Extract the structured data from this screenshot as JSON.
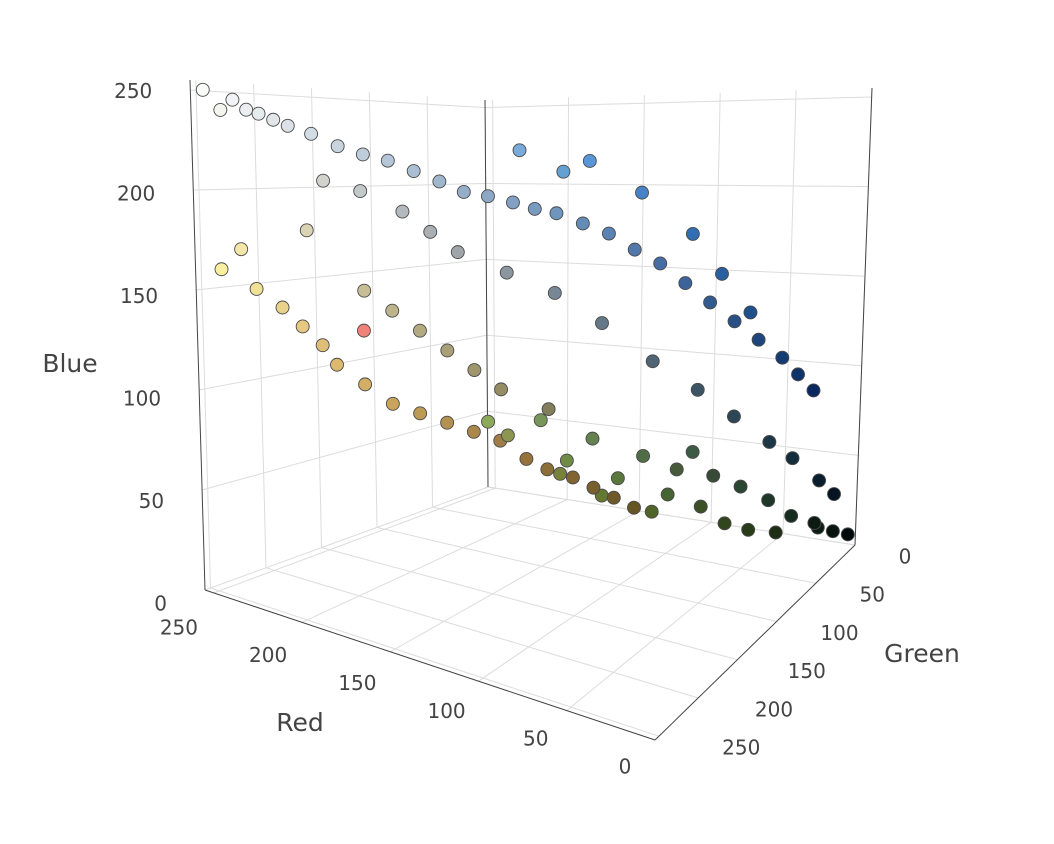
{
  "chart_data": {
    "type": "scatter3d",
    "xlabel": "Red",
    "ylabel": "Green",
    "zlabel": "Blue",
    "xlim": [
      0,
      255
    ],
    "ylim": [
      0,
      255
    ],
    "zlim": [
      0,
      255
    ],
    "xticks": [
      0,
      50,
      100,
      150,
      200,
      250
    ],
    "yticks": [
      0,
      50,
      100,
      150,
      200,
      250
    ],
    "zticks": [
      0,
      50,
      100,
      150,
      200,
      250
    ],
    "grid": true,
    "marker_color": "rgb",
    "marker_line_color": "#4a4a4a",
    "x": [
      250,
      245,
      240,
      235,
      230,
      225,
      220,
      210,
      200,
      190,
      180,
      170,
      160,
      150,
      140,
      130,
      120,
      110,
      100,
      90,
      80,
      70,
      60,
      50,
      40,
      30,
      20,
      15,
      10,
      180,
      160,
      140,
      120,
      100,
      80,
      60,
      45,
      30,
      20,
      10,
      5,
      100,
      120,
      90,
      70,
      50,
      40,
      30,
      210,
      195,
      170,
      60,
      40,
      30,
      20,
      10,
      5,
      0,
      15,
      80,
      100,
      120,
      90,
      70,
      60,
      50,
      40,
      30,
      100,
      80,
      140,
      110,
      70,
      55,
      250,
      245,
      240,
      235,
      230,
      225,
      220,
      210,
      200,
      190,
      180,
      170,
      160,
      150,
      140,
      130,
      120,
      110,
      100,
      160,
      180,
      200,
      220,
      240,
      150,
      130,
      170,
      190,
      140,
      120
    ],
    "y": [
      252,
      245,
      242,
      238,
      235,
      230,
      225,
      220,
      212,
      205,
      198,
      190,
      182,
      175,
      168,
      160,
      155,
      150,
      140,
      130,
      120,
      110,
      100,
      90,
      80,
      70,
      60,
      50,
      40,
      185,
      165,
      150,
      135,
      120,
      100,
      85,
      70,
      55,
      45,
      30,
      20,
      160,
      170,
      150,
      130,
      110,
      95,
      80,
      210,
      200,
      175,
      90,
      70,
      55,
      45,
      30,
      20,
      10,
      25,
      110,
      130,
      150,
      120,
      100,
      80,
      70,
      60,
      45,
      120,
      100,
      170,
      140,
      90,
      75,
      240,
      230,
      225,
      210,
      200,
      190,
      185,
      175,
      165,
      155,
      145,
      135,
      125,
      115,
      110,
      100,
      95,
      90,
      85,
      150,
      170,
      190,
      210,
      130,
      140,
      125,
      160,
      180,
      150,
      130
    ],
    "z": [
      250,
      240,
      245,
      240,
      238,
      235,
      232,
      228,
      222,
      218,
      215,
      210,
      205,
      200,
      198,
      195,
      192,
      190,
      185,
      180,
      172,
      165,
      155,
      145,
      135,
      125,
      115,
      105,
      95,
      190,
      170,
      160,
      150,
      135,
      115,
      100,
      85,
      70,
      60,
      45,
      35,
      210,
      220,
      215,
      200,
      180,
      160,
      140,
      205,
      200,
      180,
      70,
      50,
      40,
      30,
      20,
      15,
      10,
      20,
      70,
      80,
      90,
      60,
      50,
      40,
      30,
      25,
      20,
      50,
      40,
      90,
      70,
      60,
      55,
      160,
      170,
      150,
      140,
      130,
      120,
      110,
      100,
      90,
      85,
      80,
      75,
      70,
      60,
      55,
      50,
      45,
      40,
      35,
      110,
      130,
      150,
      180,
      120,
      100,
      90,
      120,
      140,
      80,
      60
    ]
  }
}
